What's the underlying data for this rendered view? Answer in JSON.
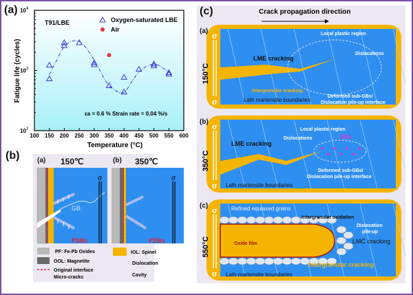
{
  "panels": {
    "a": {
      "label": "(a)"
    },
    "b": {
      "label": "(b)",
      "sub_a": "(a)",
      "sub_b": "(b)",
      "temp_a": "150℃",
      "temp_b": "350℃",
      "gb": "GB",
      "psbs": "PSBs",
      "sigma": "σ",
      "legend": [
        {
          "icon": "fe-pb-oxides-swatch",
          "text": "PF: Fe-Pb Oxides"
        },
        {
          "icon": "magnetite-swatch",
          "text": "OOL: Magnetite"
        },
        {
          "icon": "original-interface-line",
          "text": "Original interface"
        },
        {
          "icon": "micro-crack-glyph",
          "text": "Micro-cracks"
        },
        {
          "icon": "spinel-swatch",
          "text": "IOL: Spinel"
        },
        {
          "icon": "dislocation-glyph",
          "text": "Dislocation"
        },
        {
          "icon": "cavity-glyph",
          "text": "Cavity"
        }
      ]
    },
    "c": {
      "label": "(c)",
      "header": "Crack propagation direction",
      "rows": [
        {
          "sub": "(a)",
          "temp": "150°C",
          "labels": {
            "lme": "LME cracking",
            "local": "Local plastic region",
            "disl": "Dislocations",
            "ig": "Intergranular cracking",
            "lath": "Lath martensite boundaries",
            "subgb1": "Deformed sub-GBs/",
            "subgb2": "Dislocation pile-up interface"
          }
        },
        {
          "sub": "(b)",
          "temp": "350°C",
          "labels": {
            "lme": "LME cracking",
            "local": "Local plastic region",
            "disl": "Dislocations",
            "dsa": "DSA",
            "lath": "Lath martensite boundaries",
            "subgb1": "Deformed sub-GBs/",
            "subgb2": "Dislocation pile-up interface"
          }
        },
        {
          "sub": "(c)",
          "temp": "550°C",
          "labels": {
            "refined": "Refined equiaxed grains",
            "igox": "Intergranular oxidation",
            "pile1": "Dislocation",
            "pile2": "pile-up",
            "lmc": "LMC cracking",
            "oxide": "Oxide film",
            "igc": "Intergranular cracking",
            "lath": "Lath martensite boundaries"
          }
        }
      ],
      "sigma": "σ"
    }
  },
  "colors": {
    "frame": "#7b4fa8",
    "matrix": "#2f8ff0",
    "lbe": "#f5b400",
    "panel_bg": "#ece8f2",
    "series": "#3a3ad0",
    "air": "#e8303a",
    "psb": "#e0203a",
    "dsa": "#e030d0"
  },
  "chart_data": {
    "type": "scatter",
    "title": "T91/LBE",
    "xlabel": "Temperature (°C)",
    "ylabel": "Fatigue life (cycles)",
    "xlim": [
      100,
      600
    ],
    "ylim": [
      100,
      10000
    ],
    "yscale": "log",
    "xticks": [
      100,
      150,
      200,
      250,
      300,
      350,
      400,
      450,
      500,
      550,
      600
    ],
    "yticks": [
      {
        "v": 100,
        "label": "10",
        "exp": "2"
      },
      {
        "v": 1000,
        "label": "10",
        "exp": "3"
      },
      {
        "v": 10000,
        "label": "10",
        "exp": "4"
      }
    ],
    "legend_position": "top-right",
    "annotation": "εa = 0.6 % Strain rate = 0.04 %/s",
    "series": [
      {
        "name": "Oxygen-saturated LBE",
        "marker": "triangle-open",
        "points": [
          [
            150,
            1230
          ],
          [
            150,
            730
          ],
          [
            200,
            2900
          ],
          [
            200,
            2600
          ],
          [
            250,
            2900
          ],
          [
            300,
            1350
          ],
          [
            300,
            1250
          ],
          [
            350,
            560
          ],
          [
            400,
            770
          ],
          [
            400,
            440
          ],
          [
            450,
            1050
          ],
          [
            500,
            1280
          ],
          [
            500,
            1200
          ],
          [
            550,
            920
          ],
          [
            550,
            870
          ]
        ]
      },
      {
        "name": "Air",
        "marker": "circle-filled",
        "points": [
          [
            350,
            1800
          ]
        ]
      }
    ],
    "fit_curve": {
      "name": "trend",
      "style": "dash-dot",
      "points": [
        [
          150,
          850
        ],
        [
          175,
          1500
        ],
        [
          200,
          2500
        ],
        [
          230,
          3100
        ],
        [
          260,
          2800
        ],
        [
          300,
          1500
        ],
        [
          340,
          650
        ],
        [
          370,
          470
        ],
        [
          400,
          430
        ],
        [
          430,
          700
        ],
        [
          460,
          1050
        ],
        [
          500,
          1280
        ],
        [
          530,
          1100
        ],
        [
          550,
          920
        ]
      ]
    }
  }
}
